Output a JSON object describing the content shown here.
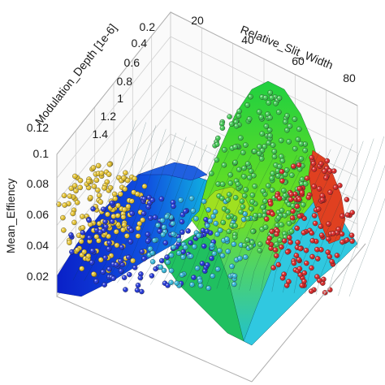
{
  "chart_data": {
    "type": "surface3d",
    "title": "",
    "xlabel": "Relative_Slit_Width",
    "ylabel": "Modulation_Depth [1e-6]",
    "zlabel": "Mean_Effiency",
    "x_ticks": [
      "20",
      "40",
      "60",
      "80"
    ],
    "y_ticks": [
      "0.2",
      "0.4",
      "0.6",
      "0.8",
      "1",
      "1.2",
      "1.4"
    ],
    "z_ticks": [
      "0.02",
      "0.04",
      "0.06",
      "0.08",
      "0.1",
      "0.12"
    ],
    "xlim": [
      10,
      90
    ],
    "ylim": [
      0.1,
      1.4
    ],
    "zlim": [
      0,
      0.13
    ],
    "grid": true,
    "colormap": [
      "#0000c8",
      "#0090e0",
      "#00d0c0",
      "#30d030",
      "#c8e000",
      "#ff2000"
    ],
    "series": [
      {
        "color": "#e6c229",
        "x": [
          12,
          13,
          15,
          17,
          19,
          21
        ],
        "y": [
          0.3,
          0.5,
          0.7,
          0.9,
          1.1,
          1.3
        ],
        "z": [
          0.105,
          0.085,
          0.065,
          0.048,
          0.032,
          0.018
        ]
      },
      {
        "color": "#1a2fd8",
        "x": [
          25,
          28,
          32,
          35,
          38,
          42
        ],
        "y": [
          0.3,
          0.5,
          0.7,
          0.9,
          1.1,
          1.3
        ],
        "z": [
          0.1,
          0.078,
          0.06,
          0.045,
          0.03,
          0.02
        ]
      },
      {
        "color": "#2bb3d6",
        "x": [
          40,
          44,
          48,
          52,
          56,
          60
        ],
        "y": [
          0.3,
          0.5,
          0.7,
          0.9,
          1.1,
          1.3
        ],
        "z": [
          0.105,
          0.095,
          0.08,
          0.06,
          0.045,
          0.03
        ]
      },
      {
        "color": "#37c84b",
        "x": [
          52,
          55,
          58,
          62,
          65,
          68
        ],
        "y": [
          0.2,
          0.35,
          0.5,
          0.7,
          0.9,
          1.1
        ],
        "z": [
          0.135,
          0.125,
          0.11,
          0.09,
          0.07,
          0.05
        ]
      },
      {
        "color": "#d81e1e",
        "x": [
          72,
          76,
          80,
          84,
          86,
          88
        ],
        "y": [
          0.3,
          0.5,
          0.7,
          0.9,
          1.1,
          1.3
        ],
        "z": [
          0.09,
          0.07,
          0.055,
          0.04,
          0.03,
          0.02
        ]
      }
    ]
  }
}
